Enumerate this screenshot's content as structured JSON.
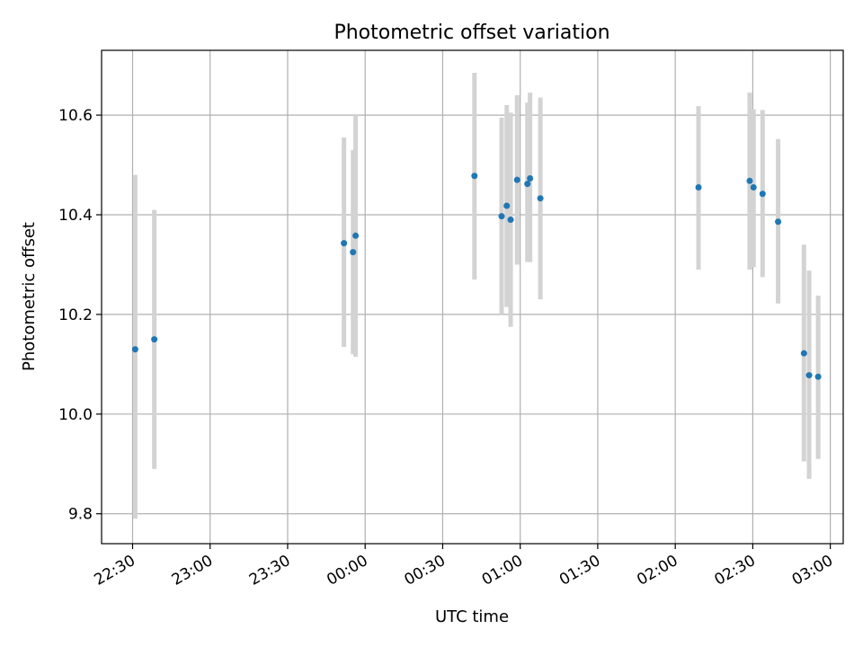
{
  "chart_data": {
    "type": "scatter",
    "title": "Photometric offset variation",
    "xlabel": "UTC time",
    "ylabel": "Photometric offset",
    "x_unit": "minutes after 22:30 UTC",
    "xlim": [
      -12,
      275
    ],
    "ylim": [
      9.74,
      10.73
    ],
    "x_ticks": [
      {
        "value": 0,
        "label": "22:30"
      },
      {
        "value": 30,
        "label": "23:00"
      },
      {
        "value": 60,
        "label": "23:30"
      },
      {
        "value": 90,
        "label": "00:00"
      },
      {
        "value": 120,
        "label": "00:30"
      },
      {
        "value": 150,
        "label": "01:00"
      },
      {
        "value": 180,
        "label": "01:30"
      },
      {
        "value": 210,
        "label": "02:00"
      },
      {
        "value": 240,
        "label": "02:30"
      },
      {
        "value": 270,
        "label": "03:00"
      }
    ],
    "y_ticks": [
      {
        "value": 9.8,
        "label": "9.8"
      },
      {
        "value": 10.0,
        "label": "10.0"
      },
      {
        "value": 10.2,
        "label": "10.2"
      },
      {
        "value": 10.4,
        "label": "10.4"
      },
      {
        "value": 10.6,
        "label": "10.6"
      }
    ],
    "grid": true,
    "point_color": "#1f77b4",
    "errorbar_color": "#d3d3d3",
    "points": [
      {
        "x": 1.0,
        "y": 10.13,
        "ymin": 9.79,
        "ymax": 10.48
      },
      {
        "x": 8.4,
        "y": 10.15,
        "ymin": 9.89,
        "ymax": 10.41
      },
      {
        "x": 81.8,
        "y": 10.343,
        "ymin": 10.135,
        "ymax": 10.555
      },
      {
        "x": 85.3,
        "y": 10.325,
        "ymin": 10.12,
        "ymax": 10.53
      },
      {
        "x": 86.3,
        "y": 10.358,
        "ymin": 10.115,
        "ymax": 10.6
      },
      {
        "x": 132.3,
        "y": 10.478,
        "ymin": 10.27,
        "ymax": 10.685
      },
      {
        "x": 142.8,
        "y": 10.397,
        "ymin": 10.2,
        "ymax": 10.595
      },
      {
        "x": 144.8,
        "y": 10.418,
        "ymin": 10.215,
        "ymax": 10.62
      },
      {
        "x": 146.3,
        "y": 10.39,
        "ymin": 10.175,
        "ymax": 10.605
      },
      {
        "x": 148.8,
        "y": 10.47,
        "ymin": 10.3,
        "ymax": 10.64
      },
      {
        "x": 152.8,
        "y": 10.462,
        "ymin": 10.305,
        "ymax": 10.625
      },
      {
        "x": 153.8,
        "y": 10.473,
        "ymin": 10.305,
        "ymax": 10.645
      },
      {
        "x": 157.8,
        "y": 10.433,
        "ymin": 10.23,
        "ymax": 10.635
      },
      {
        "x": 219.0,
        "y": 10.455,
        "ymin": 10.29,
        "ymax": 10.618
      },
      {
        "x": 238.8,
        "y": 10.468,
        "ymin": 10.29,
        "ymax": 10.645
      },
      {
        "x": 240.3,
        "y": 10.455,
        "ymin": 10.295,
        "ymax": 10.612
      },
      {
        "x": 243.8,
        "y": 10.442,
        "ymin": 10.275,
        "ymax": 10.61
      },
      {
        "x": 249.8,
        "y": 10.386,
        "ymin": 10.222,
        "ymax": 10.552
      },
      {
        "x": 259.8,
        "y": 10.122,
        "ymin": 9.905,
        "ymax": 10.34
      },
      {
        "x": 261.8,
        "y": 10.078,
        "ymin": 9.87,
        "ymax": 10.288
      },
      {
        "x": 265.3,
        "y": 10.075,
        "ymin": 9.91,
        "ymax": 10.238
      }
    ]
  }
}
